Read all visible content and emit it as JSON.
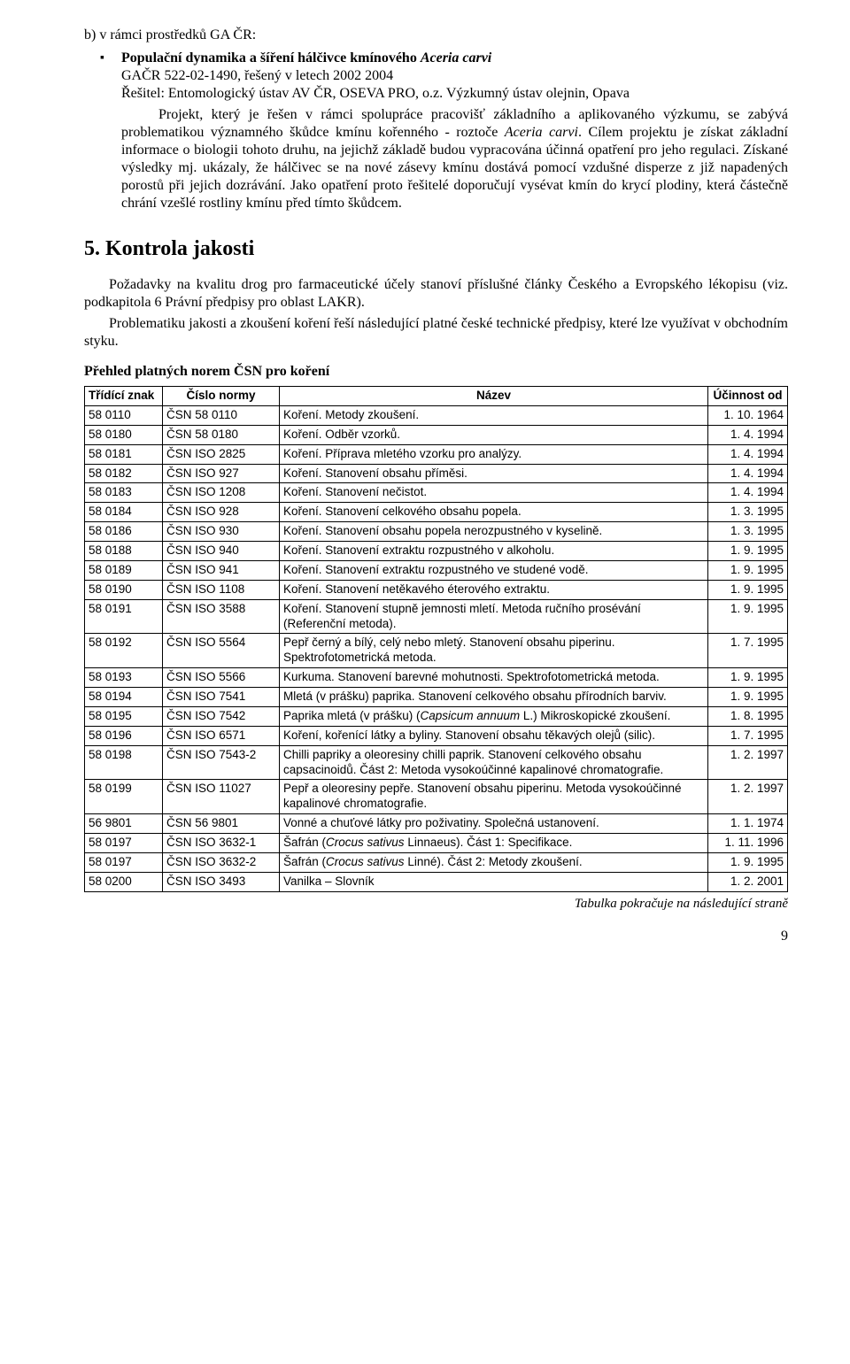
{
  "intro": {
    "line_b": "b) v rámci prostředků GA ČR:",
    "bullet1_bold": "Populační dynamika a šíření hálčivce kmínového ",
    "bullet1_italic": "Aceria carvi",
    "line_gacr": "GAČR 522-02-1490, řešený v letech 2002 2004",
    "line_resitel": "Řešitel: Entomologický ústav AV ČR, OSEVA PRO, o.z. Výzkumný ústav olejnin, Opava",
    "paragraph_pre_italic": "Projekt, který je řešen v rámci spolupráce pracovišť základního a aplikovaného výzkumu, se zabývá problematikou významného škůdce kmínu kořenného - roztoče ",
    "paragraph_italic": "Aceria carvi",
    "paragraph_post_italic": ". Cílem projektu je získat základní informace o biologii tohoto druhu, na jejichž základě budou vypracována účinná opatření pro jeho regulaci. Získané výsledky mj. ukázaly, že hálčivec se na nové zásevy kmínu dostává pomocí vzdušné disperze z již napadených porostů při jejich dozrávání. Jako opatření proto řešitelé doporučují vysévat kmín do krycí plodiny, která částečně chrání vzešlé rostliny kmínu před tímto škůdcem."
  },
  "section5": {
    "title": "5. Kontrola jakosti",
    "p1": "Požadavky na kvalitu drog pro farmaceutické účely stanoví příslušné články Českého a Evropského lékopisu (viz. podkapitola 6 Právní předpisy  pro oblast LAKR).",
    "p2": "Problematiku jakosti a zkoušení koření řeší následující platné české technické předpisy, které lze využívat v obchodním styku.",
    "subhead": "Přehled platných norem ČSN pro koření",
    "cols": {
      "znak": "Třídící znak",
      "cislo": "Číslo normy",
      "nazev": "Název",
      "ucin": "Účinnost od"
    },
    "rows": [
      {
        "znak": "58 0110",
        "cislo": "ČSN 58 0110",
        "nazev": "Koření. Metody zkoušení.",
        "ucin": "1. 10. 1964"
      },
      {
        "znak": "58 0180",
        "cislo": "ČSN 58 0180",
        "nazev": "Koření. Odběr vzorků.",
        "ucin": "1. 4. 1994"
      },
      {
        "znak": "58 0181",
        "cislo": "ČSN ISO 2825",
        "nazev": "Koření. Příprava mletého vzorku pro analýzy.",
        "ucin": "1. 4. 1994"
      },
      {
        "znak": "58 0182",
        "cislo": "ČSN ISO 927",
        "nazev": "Koření. Stanovení obsahu příměsi.",
        "ucin": "1. 4. 1994"
      },
      {
        "znak": "58 0183",
        "cislo": "ČSN ISO 1208",
        "nazev": "Koření. Stanovení nečistot.",
        "ucin": "1. 4. 1994"
      },
      {
        "znak": "58 0184",
        "cislo": "ČSN ISO 928",
        "nazev": "Koření. Stanovení celkového obsahu popela.",
        "ucin": "1. 3. 1995"
      },
      {
        "znak": "58 0186",
        "cislo": "ČSN ISO 930",
        "nazev": "Koření. Stanovení obsahu popela nerozpustného v kyselině.",
        "ucin": "1. 3. 1995"
      },
      {
        "znak": "58 0188",
        "cislo": "ČSN ISO 940",
        "nazev": "Koření. Stanovení  extraktu rozpustného v alkoholu.",
        "ucin": "1. 9. 1995"
      },
      {
        "znak": "58 0189",
        "cislo": "ČSN ISO 941",
        "nazev": "Koření. Stanovení extraktu rozpustného ve studené vodě.",
        "ucin": "1. 9. 1995"
      },
      {
        "znak": "58 0190",
        "cislo": "ČSN ISO 1108",
        "nazev": "Koření. Stanovení netěkavého éterového extraktu.",
        "ucin": "1. 9. 1995"
      },
      {
        "znak": "58 0191",
        "cislo": "ČSN ISO 3588",
        "nazev": "Koření. Stanovení stupně jemnosti mletí. Metoda ručního prosévání (Referenční metoda).",
        "ucin": "1. 9. 1995"
      },
      {
        "znak": "58 0192",
        "cislo": "ČSN ISO 5564",
        "nazev": "Pepř černý a bílý, celý nebo mletý. Stanovení obsahu piperinu. Spektrofotometrická metoda.",
        "ucin": "1. 7. 1995"
      },
      {
        "znak": "58 0193",
        "cislo": "ČSN ISO 5566",
        "nazev": "Kurkuma. Stanovení barevné mohutnosti. Spektrofotometrická metoda.",
        "ucin": "1. 9. 1995"
      },
      {
        "znak": "58 0194",
        "cislo": "ČSN ISO 7541",
        "nazev": "Mletá (v prášku) paprika. Stanovení celkového obsahu přírodních barviv.",
        "ucin": "1. 9. 1995"
      },
      {
        "znak": "58 0195",
        "cislo": "ČSN ISO 7542",
        "nazev_html": "Paprika mletá (v prášku) (<i>Capsicum annuum</i> L.) Mikroskopické zkoušení.",
        "ucin": "1. 8. 1995"
      },
      {
        "znak": "58 0196",
        "cislo": "ČSN ISO 6571",
        "nazev": "Koření, kořenící látky a byliny. Stanovení obsahu těkavých olejů (silic).",
        "ucin": "1. 7. 1995"
      },
      {
        "znak": "58 0198",
        "cislo": "ČSN ISO 7543-2",
        "nazev": "Chilli papriky a oleoresiny chilli paprik. Stanovení celkového obsahu capsacinoidů. Část 2: Metoda vysokoúčinné kapalinové chromatografie.",
        "ucin": "1. 2. 1997"
      },
      {
        "znak": "58 0199",
        "cislo": "ČSN ISO 11027",
        "nazev": "Pepř a oleoresiny pepře. Stanovení obsahu piperinu. Metoda vysokoúčinné kapalinové chromatografie.",
        "ucin": "1. 2. 1997"
      },
      {
        "znak": "56 9801",
        "cislo": "ČSN 56 9801",
        "nazev": "Vonné a chuťové látky pro poživatiny. Společná ustanovení.",
        "ucin": "1. 1. 1974"
      },
      {
        "znak": "58 0197",
        "cislo": "ČSN ISO 3632-1",
        "nazev_html": "Šafrán (<i>Crocus sativus</i> Linnaeus). Část 1: Specifikace.",
        "ucin": "1. 11. 1996"
      },
      {
        "znak": "58 0197",
        "cislo": "ČSN ISO 3632-2",
        "nazev_html": "Šafrán (<i>Crocus sativus</i> Linné). Část 2: Metody zkoušení.",
        "ucin": "1. 9. 1995"
      },
      {
        "znak": "58 0200",
        "cislo": "ČSN ISO 3493",
        "nazev": "Vanilka – Slovník",
        "ucin": "1. 2. 2001"
      }
    ],
    "table_note": "Tabulka pokračuje na následující straně"
  },
  "page_number": "9"
}
